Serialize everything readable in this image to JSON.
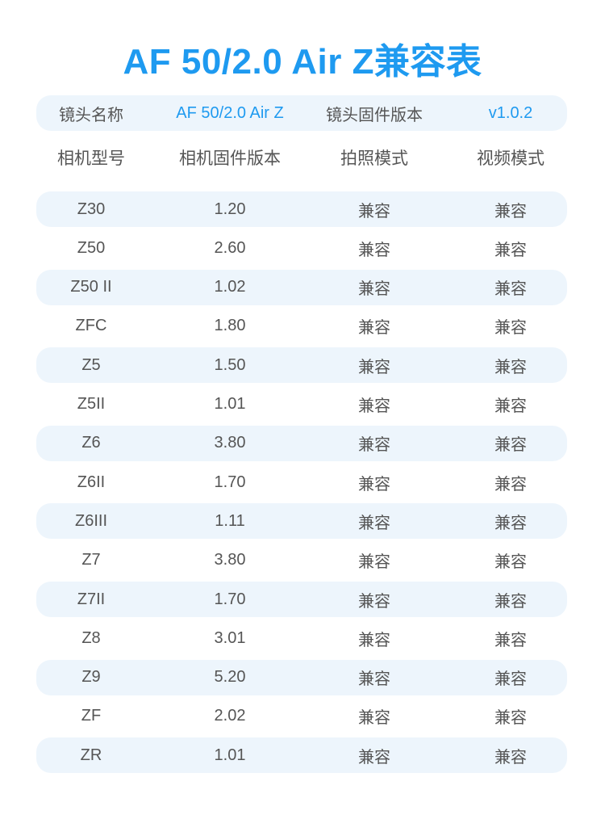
{
  "title": "AF 50/2.0 Air Z兼容表",
  "lens_info": {
    "name_label": "镜头名称",
    "name_value": "AF 50/2.0 Air Z",
    "firmware_label": "镜头固件版本",
    "firmware_value": "v1.0.2"
  },
  "columns": [
    "相机型号",
    "相机固件版本",
    "拍照模式",
    "视频模式"
  ],
  "rows": [
    [
      "Z30",
      "1.20",
      "兼容",
      "兼容"
    ],
    [
      "Z50",
      "2.60",
      "兼容",
      "兼容"
    ],
    [
      "Z50 II",
      "1.02",
      "兼容",
      "兼容"
    ],
    [
      "ZFC",
      "1.80",
      "兼容",
      "兼容"
    ],
    [
      "Z5",
      "1.50",
      "兼容",
      "兼容"
    ],
    [
      "Z5II",
      "1.01",
      "兼容",
      "兼容"
    ],
    [
      "Z6",
      "3.80",
      "兼容",
      "兼容"
    ],
    [
      "Z6II",
      "1.70",
      "兼容",
      "兼容"
    ],
    [
      "Z6III",
      "1.11",
      "兼容",
      "兼容"
    ],
    [
      "Z7",
      "3.80",
      "兼容",
      "兼容"
    ],
    [
      "Z7II",
      "1.70",
      "兼容",
      "兼容"
    ],
    [
      "Z8",
      "3.01",
      "兼容",
      "兼容"
    ],
    [
      "Z9",
      "5.20",
      "兼容",
      "兼容"
    ],
    [
      "ZF",
      "2.02",
      "兼容",
      "兼容"
    ],
    [
      "ZR",
      "1.01",
      "兼容",
      "兼容"
    ]
  ],
  "colors": {
    "accent": "#1e9af0",
    "stripe": "#edf5fc",
    "text": "#555555"
  }
}
